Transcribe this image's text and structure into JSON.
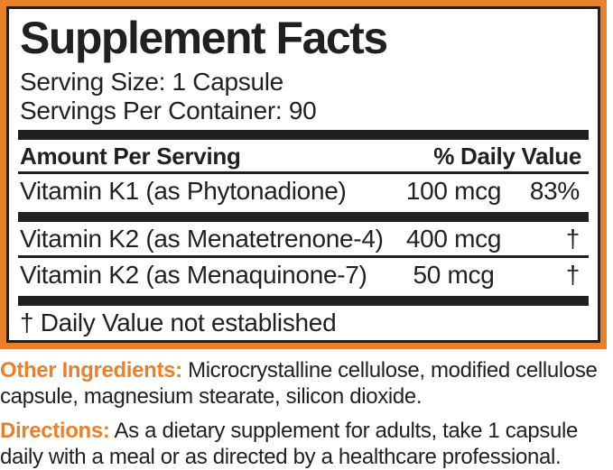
{
  "colors": {
    "accent_orange": "#E8812C",
    "text_black": "#221F20"
  },
  "panel": {
    "title": "Supplement Facts",
    "serving_size": "Serving Size: 1 Capsule",
    "servings_per_container": "Servings Per Container: 90",
    "header": {
      "amount_col": "Amount Per Serving",
      "dv_col": "% Daily Value"
    },
    "rows": [
      {
        "name": "Vitamin K1 (as Phytonadione)",
        "amount": "100 mcg",
        "dv": "83%"
      },
      {
        "name": "Vitamin K2 (as Menatetrenone-4)",
        "amount": "400 mcg",
        "dv": "†"
      },
      {
        "name": "Vitamin K2 (as Menaquinone-7)",
        "amount": "50 mcg",
        "dv": "†"
      }
    ],
    "footnote": "† Daily Value not established"
  },
  "other_ingredients": {
    "heading": "Other Ingredients:",
    "text": "Microcrystalline cellulose, modified cellulose capsule, magnesium stearate, silicon dioxide."
  },
  "directions": {
    "heading": "Directions:",
    "text": "As a dietary supplement for adults, take 1 capsule daily with a meal or as directed by a healthcare professional."
  }
}
